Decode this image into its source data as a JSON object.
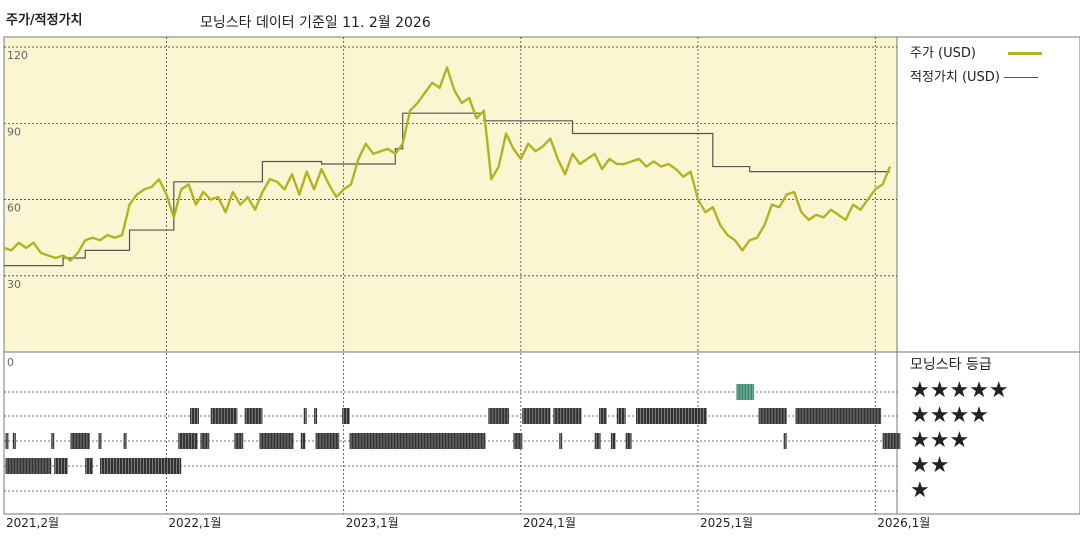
{
  "header": {
    "title": "주가/적정가치",
    "subtitle": "모닝스타 데이터 기준일 11. 2월 2026"
  },
  "legend": {
    "price_label": "주가 (USD)",
    "fair_label": "적정가치 (USD)",
    "price_color": "#b3b322",
    "fair_color": "#555555"
  },
  "rating": {
    "title": "모닝스타 등급",
    "stars": [
      "★★★★★",
      "★★★★",
      "★★★",
      "★★",
      "★"
    ],
    "colors": {
      "normal": "#333333",
      "five": "#3e8a6e"
    }
  },
  "chart_data": {
    "type": "line",
    "title": "주가/적정가치",
    "ylim": [
      0,
      124
    ],
    "yticks": [
      {
        "value": 0,
        "label": "0"
      },
      {
        "value": 30,
        "label": "30"
      },
      {
        "value": 60,
        "label": "60"
      },
      {
        "value": 90,
        "label": "90"
      },
      {
        "value": 120,
        "label": "120"
      }
    ],
    "xticks": [
      "2021,2월",
      "2022,1월",
      "2023,1월",
      "2024,1월",
      "2025,1월",
      "2026,1월"
    ],
    "xtick_months": [
      0,
      11,
      23,
      35,
      47,
      59
    ],
    "xlim_months": [
      0,
      60
    ],
    "series": [
      {
        "name": "주가 (USD)",
        "color": "#b3b322",
        "points": [
          [
            0,
            41
          ],
          [
            0.5,
            40
          ],
          [
            1,
            43
          ],
          [
            1.5,
            41
          ],
          [
            2,
            43
          ],
          [
            2.5,
            39
          ],
          [
            3,
            38
          ],
          [
            3.5,
            37
          ],
          [
            4,
            38
          ],
          [
            4.5,
            36
          ],
          [
            5,
            39
          ],
          [
            5.5,
            44
          ],
          [
            6,
            45
          ],
          [
            6.5,
            44
          ],
          [
            7,
            46
          ],
          [
            7.5,
            45
          ],
          [
            8,
            46
          ],
          [
            8.5,
            58
          ],
          [
            9,
            62
          ],
          [
            9.5,
            64
          ],
          [
            10,
            65
          ],
          [
            10.5,
            68
          ],
          [
            11,
            62
          ],
          [
            11.5,
            53
          ],
          [
            12,
            64
          ],
          [
            12.5,
            66
          ],
          [
            13,
            58
          ],
          [
            13.5,
            63
          ],
          [
            14,
            60
          ],
          [
            14.5,
            61
          ],
          [
            15,
            55
          ],
          [
            15.5,
            63
          ],
          [
            16,
            58
          ],
          [
            16.5,
            61
          ],
          [
            17,
            56
          ],
          [
            17.5,
            63
          ],
          [
            18,
            68
          ],
          [
            18.5,
            67
          ],
          [
            19,
            64
          ],
          [
            19.5,
            70
          ],
          [
            20,
            62
          ],
          [
            20.5,
            71
          ],
          [
            21,
            64
          ],
          [
            21.5,
            72
          ],
          [
            22,
            66
          ],
          [
            22.5,
            61
          ],
          [
            23,
            64
          ],
          [
            23.5,
            66
          ],
          [
            24,
            76
          ],
          [
            24.5,
            82
          ],
          [
            25,
            78
          ],
          [
            25.5,
            79
          ],
          [
            26,
            80
          ],
          [
            26.5,
            78
          ],
          [
            27,
            82
          ],
          [
            27.5,
            95
          ],
          [
            28,
            98
          ],
          [
            28.5,
            102
          ],
          [
            29,
            106
          ],
          [
            29.5,
            104
          ],
          [
            30,
            112
          ],
          [
            30.5,
            103
          ],
          [
            31,
            98
          ],
          [
            31.5,
            100
          ],
          [
            32,
            92
          ],
          [
            32.5,
            95
          ],
          [
            33,
            68
          ],
          [
            33.5,
            73
          ],
          [
            34,
            86
          ],
          [
            34.5,
            80
          ],
          [
            35,
            76
          ],
          [
            35.5,
            82
          ],
          [
            36,
            79
          ],
          [
            36.5,
            81
          ],
          [
            37,
            84
          ],
          [
            37.5,
            76
          ],
          [
            38,
            70
          ],
          [
            38.5,
            78
          ],
          [
            39,
            74
          ],
          [
            39.5,
            76
          ],
          [
            40,
            78
          ],
          [
            40.5,
            72
          ],
          [
            41,
            76
          ],
          [
            41.5,
            74
          ],
          [
            42,
            74
          ],
          [
            42.5,
            75
          ],
          [
            43,
            76
          ],
          [
            43.5,
            73
          ],
          [
            44,
            75
          ],
          [
            44.5,
            73
          ],
          [
            45,
            74
          ],
          [
            45.5,
            72
          ],
          [
            46,
            69
          ],
          [
            46.5,
            71
          ],
          [
            47,
            60
          ],
          [
            47.5,
            55
          ],
          [
            48,
            57
          ],
          [
            48.5,
            50
          ],
          [
            49,
            46
          ],
          [
            49.5,
            44
          ],
          [
            50,
            40
          ],
          [
            50.5,
            44
          ],
          [
            51,
            45
          ],
          [
            51.5,
            50
          ],
          [
            52,
            58
          ],
          [
            52.5,
            57
          ],
          [
            53,
            62
          ],
          [
            53.5,
            63
          ],
          [
            54,
            55
          ],
          [
            54.5,
            52
          ],
          [
            55,
            54
          ],
          [
            55.5,
            53
          ],
          [
            56,
            56
          ],
          [
            56.5,
            54
          ],
          [
            57,
            52
          ],
          [
            57.5,
            58
          ],
          [
            58,
            56
          ],
          [
            58.5,
            60
          ],
          [
            59,
            64
          ],
          [
            59.5,
            66
          ],
          [
            60,
            73
          ]
        ]
      },
      {
        "name": "적정가치 (USD)",
        "color": "#555555",
        "points": [
          [
            0,
            34
          ],
          [
            4,
            34
          ],
          [
            4,
            37
          ],
          [
            5.5,
            37
          ],
          [
            5.5,
            40
          ],
          [
            8.5,
            40
          ],
          [
            8.5,
            48
          ],
          [
            11.5,
            48
          ],
          [
            11.5,
            67
          ],
          [
            17.5,
            67
          ],
          [
            17.5,
            75
          ],
          [
            21.5,
            75
          ],
          [
            21.5,
            74
          ],
          [
            26.5,
            74
          ],
          [
            26.5,
            80
          ],
          [
            27,
            80
          ],
          [
            27,
            94
          ],
          [
            32.5,
            94
          ],
          [
            32.5,
            91
          ],
          [
            38.5,
            91
          ],
          [
            38.5,
            86
          ],
          [
            48,
            86
          ],
          [
            48,
            73
          ],
          [
            50.5,
            73
          ],
          [
            50.5,
            71
          ],
          [
            60,
            71
          ]
        ]
      }
    ],
    "star_rating_bands": {
      "rows": [
        5,
        4,
        3,
        2
      ],
      "segments": {
        "5": [
          [
            49.6,
            50.8
          ]
        ],
        "4": [
          [
            12.6,
            13.2
          ],
          [
            14.0,
            15.8
          ],
          [
            16.3,
            17.5
          ],
          [
            20.3,
            20.5
          ],
          [
            21.0,
            21.2
          ],
          [
            22.9,
            23.4
          ],
          [
            32.8,
            34.2
          ],
          [
            35.1,
            37.0
          ],
          [
            37.2,
            39.1
          ],
          [
            40.3,
            40.8
          ],
          [
            41.5,
            42.1
          ],
          [
            42.8,
            47.6
          ],
          [
            51.1,
            53.0
          ],
          [
            53.6,
            59.4
          ]
        ],
        "3": [
          [
            0.1,
            0.3
          ],
          [
            0.6,
            0.8
          ],
          [
            3.2,
            3.4
          ],
          [
            4.5,
            5.8
          ],
          [
            6.4,
            6.6
          ],
          [
            8.1,
            8.3
          ],
          [
            11.8,
            13.1
          ],
          [
            13.3,
            13.9
          ],
          [
            15.6,
            16.2
          ],
          [
            17.3,
            19.6
          ],
          [
            20.1,
            20.4
          ],
          [
            21.1,
            22.7
          ],
          [
            23.4,
            32.6
          ],
          [
            34.5,
            35.1
          ],
          [
            37.6,
            37.8
          ],
          [
            40.0,
            40.4
          ],
          [
            41.1,
            41.4
          ],
          [
            42.1,
            42.5
          ],
          [
            52.8,
            53.0
          ],
          [
            59.5,
            60.7
          ]
        ],
        "2": [
          [
            0.1,
            3.2
          ],
          [
            3.4,
            4.3
          ],
          [
            5.5,
            6.0
          ],
          [
            6.5,
            12.0
          ]
        ]
      }
    }
  }
}
